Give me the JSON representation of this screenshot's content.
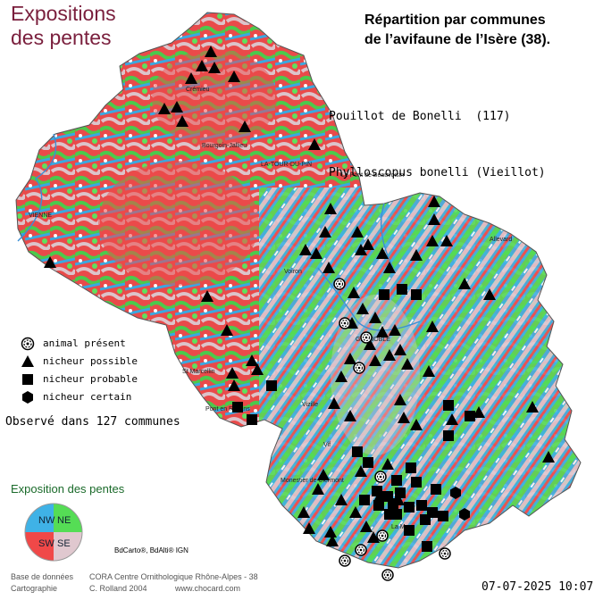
{
  "map": {
    "title": "Expositions des pentes",
    "title_lines": [
      "Expositions",
      "des pentes"
    ],
    "heading_lines": [
      "Répartition par communes",
      "de l’avifaune de l’Isère (38)."
    ],
    "species_common": "Pouillot de Bonelli  (117)",
    "species_latin": "Phylloscopus bonelli (Vieillot)",
    "observed": "Observé dans 127 communes",
    "exposure_title": "Exposition des pentes",
    "compass_labels": {
      "nw": "NW",
      "ne": "NE",
      "sw": "SW",
      "se": "SE"
    },
    "compass_colors": {
      "nw": "#3fb2e6",
      "ne": "#55dd55",
      "sw": "#f04848",
      "se": "#e0c8cf"
    },
    "credit": "BdCarto®, BdAlti® IGN",
    "footer": {
      "db_label": "Base de données",
      "db_value": "CORA Centre Ornithologique Rhône-Alpes - 38",
      "carto_label": "Cartographie",
      "carto_value": "C. Rolland 2004",
      "url": "www.chocard.com"
    },
    "date": "07-07-2025 10:07",
    "legend": [
      {
        "symbol": "ring-icon",
        "label": "animal présent"
      },
      {
        "symbol": "triangle-icon",
        "label": "nicheur possible"
      },
      {
        "symbol": "square-icon",
        "label": "nicheur probable"
      },
      {
        "symbol": "hexagon-icon",
        "label": "nicheur certain"
      }
    ],
    "places": [
      "VIENNE",
      "LA-TOUR-DU-PIN",
      "GRENOBLE",
      "Voiron",
      "Crémieu",
      "Bourgoin-Jallieu",
      "Le Pont de Beauvoisin",
      "Allevard",
      "Vizille",
      "Monestier de Clermont",
      "St Marcellin",
      "Pont en Royans",
      "La Mure",
      "Vif"
    ]
  }
}
